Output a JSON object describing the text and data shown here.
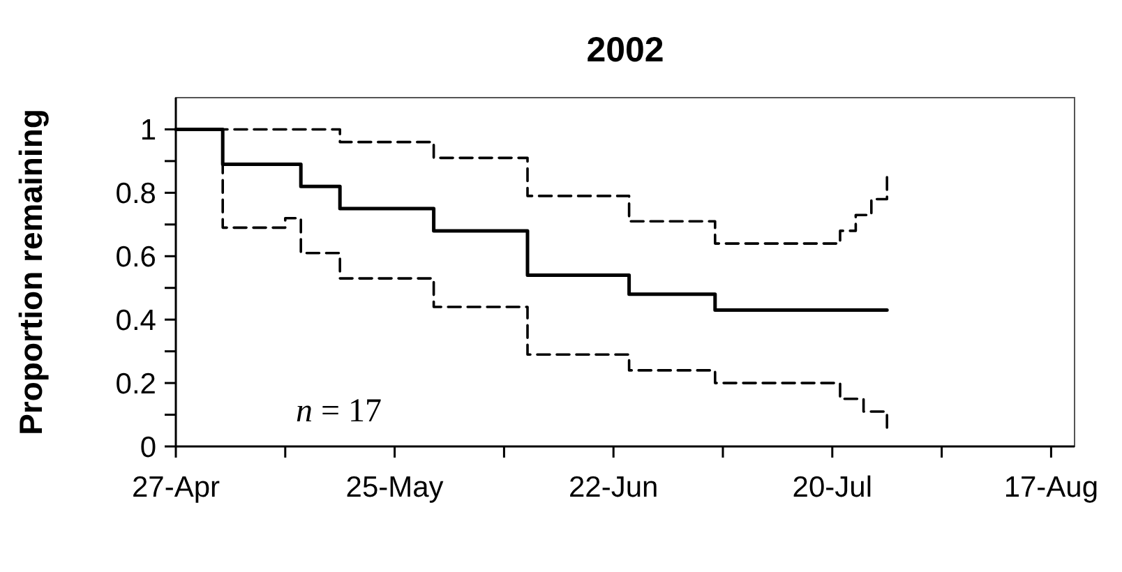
{
  "chart_data": {
    "type": "step",
    "title": "2002",
    "ylabel": "Proportion remaining",
    "xlim": [
      "2002-04-27",
      "2002-08-20"
    ],
    "xticks": [
      {
        "value": "2002-04-27",
        "label": "27-Apr"
      },
      {
        "value": "2002-05-11",
        "label": null
      },
      {
        "value": "2002-05-25",
        "label": "25-May"
      },
      {
        "value": "2002-06-08",
        "label": null
      },
      {
        "value": "2002-06-22",
        "label": "22-Jun"
      },
      {
        "value": "2002-07-06",
        "label": null
      },
      {
        "value": "2002-07-20",
        "label": "20-Jul"
      },
      {
        "value": "2002-08-03",
        "label": null
      },
      {
        "value": "2002-08-17",
        "label": "17-Aug"
      }
    ],
    "ylim": [
      0,
      1.1
    ],
    "yticks": [
      0,
      {
        "value": 0.1,
        "label": null
      },
      {
        "value": 0.2,
        "label": "0.2"
      },
      {
        "value": 0.3,
        "label": null
      },
      {
        "value": 0.4,
        "label": "0.4"
      },
      {
        "value": 0.5,
        "label": null
      },
      {
        "value": 0.6,
        "label": "0.6"
      },
      {
        "value": 0.7,
        "label": null
      },
      {
        "value": 0.8,
        "label": "0.8"
      },
      {
        "value": 0.9,
        "label": null
      },
      1
    ],
    "grid": false,
    "marker": "none",
    "series": [
      {
        "color": "#000000",
        "line_style": "solid",
        "x": [
          "2002-04-27",
          "2002-05-03",
          "2002-05-13",
          "2002-05-18",
          "2002-05-30",
          "2002-06-11",
          "2002-06-24",
          "2002-07-05",
          "2002-07-27"
        ],
        "values": [
          1,
          0.89,
          0.82,
          0.75,
          0.68,
          0.54,
          0.48,
          0.43,
          0.43
        ]
      },
      {
        "color": "#000000",
        "line_style": "dashed",
        "x": [
          "2002-04-27",
          "2002-05-18",
          "2002-05-30",
          "2002-06-11",
          "2002-06-24",
          "2002-07-05",
          "2002-07-21",
          "2002-07-23",
          "2002-07-25",
          "2002-07-27"
        ],
        "values": [
          1,
          0.96,
          0.91,
          0.79,
          0.71,
          0.64,
          0.68,
          0.73,
          0.78,
          0.86
        ]
      },
      {
        "color": "#000000",
        "line_style": "dashed",
        "x": [
          "2002-04-27",
          "2002-05-03",
          "2002-05-11",
          "2002-05-13",
          "2002-05-18",
          "2002-05-30",
          "2002-06-11",
          "2002-06-24",
          "2002-07-05",
          "2002-07-21",
          "2002-07-24",
          "2002-07-27"
        ],
        "values": [
          1,
          0.69,
          0.72,
          0.61,
          0.53,
          0.44,
          0.29,
          0.24,
          0.2,
          0.15,
          0.11,
          0.05
        ]
      }
    ],
    "annotations": [
      "n = 17"
    ]
  }
}
